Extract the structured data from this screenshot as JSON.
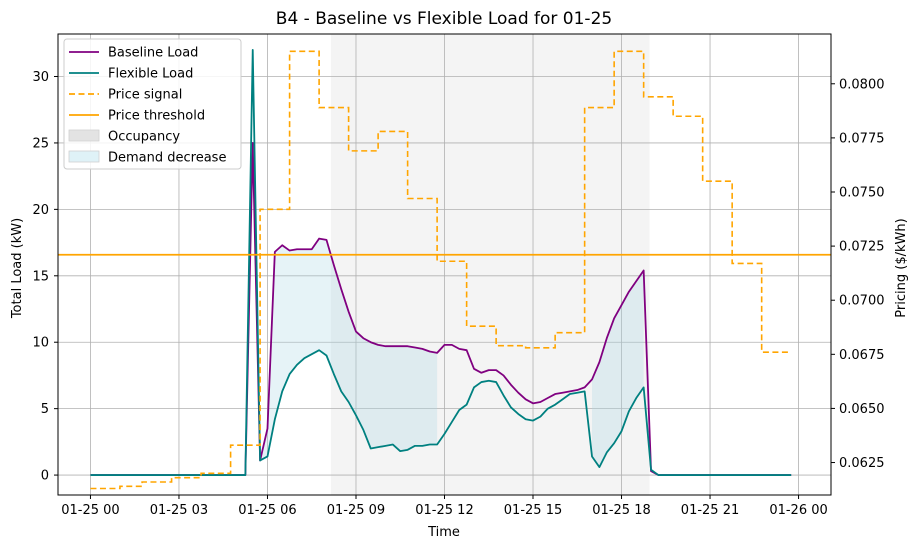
{
  "chart_data": {
    "type": "line",
    "title": "B4 - Baseline vs Flexible Load for 01-25",
    "xlabel": "Time",
    "ylabel_left": "Total Load (kW)",
    "ylabel_right": "Pricing ($/kWh)",
    "xlim_hours": [
      -1.1,
      25.1
    ],
    "ylim_left": [
      -1.5,
      33.2
    ],
    "ylim_right": [
      0.061,
      0.0823
    ],
    "grid": true,
    "legend_position": "upper-left",
    "x_ticks": [
      {
        "hour": 0,
        "label": "01-25 00"
      },
      {
        "hour": 3,
        "label": "01-25 03"
      },
      {
        "hour": 6,
        "label": "01-25 06"
      },
      {
        "hour": 9,
        "label": "01-25 09"
      },
      {
        "hour": 12,
        "label": "01-25 12"
      },
      {
        "hour": 15,
        "label": "01-25 15"
      },
      {
        "hour": 18,
        "label": "01-25 18"
      },
      {
        "hour": 21,
        "label": "01-25 21"
      },
      {
        "hour": 24,
        "label": "01-26 00"
      }
    ],
    "y_ticks_left": [
      {
        "value": 0,
        "label": "0"
      },
      {
        "value": 5,
        "label": "5"
      },
      {
        "value": 10,
        "label": "10"
      },
      {
        "value": 15,
        "label": "15"
      },
      {
        "value": 20,
        "label": "20"
      },
      {
        "value": 25,
        "label": "25"
      },
      {
        "value": 30,
        "label": "30"
      }
    ],
    "y_ticks_right": [
      {
        "value": 0.0625,
        "label": "0.0625"
      },
      {
        "value": 0.065,
        "label": "0.0650"
      },
      {
        "value": 0.0675,
        "label": "0.0675"
      },
      {
        "value": 0.07,
        "label": "0.0700"
      },
      {
        "value": 0.0725,
        "label": "0.0725"
      },
      {
        "value": 0.075,
        "label": "0.0750"
      },
      {
        "value": 0.0775,
        "label": "0.0775"
      },
      {
        "value": 0.08,
        "label": "0.0800"
      }
    ],
    "occupancy": {
      "start_hour": 8.15,
      "end_hour": 18.95
    },
    "demand_decrease_regions": [
      {
        "start_hour": 5.75,
        "end_hour": 11.75
      },
      {
        "start_hour": 16.85,
        "end_hour": 18.75
      }
    ],
    "price_threshold": 0.0721,
    "series": [
      {
        "name": "Baseline Load",
        "color": "#800080",
        "style": "solid",
        "axis": "left",
        "x": [
          0,
          0.25,
          0.5,
          0.75,
          1,
          1.25,
          1.5,
          1.75,
          2,
          2.25,
          2.5,
          2.75,
          3,
          3.25,
          3.5,
          3.75,
          4,
          4.25,
          4.5,
          4.75,
          5,
          5.25,
          5.5,
          5.75,
          6,
          6.25,
          6.5,
          6.75,
          7,
          7.25,
          7.5,
          7.75,
          8,
          8.25,
          8.5,
          8.75,
          9,
          9.25,
          9.5,
          9.75,
          10,
          10.25,
          10.5,
          10.75,
          11,
          11.25,
          11.5,
          11.75,
          12,
          12.25,
          12.5,
          12.75,
          13,
          13.25,
          13.5,
          13.75,
          14,
          14.25,
          14.5,
          14.75,
          15,
          15.25,
          15.5,
          15.75,
          16,
          16.25,
          16.5,
          16.75,
          17,
          17.25,
          17.5,
          17.75,
          18,
          18.25,
          18.5,
          18.75,
          19,
          19.25,
          19.5,
          19.75,
          20,
          20.25,
          20.5,
          20.75,
          21,
          21.25,
          21.5,
          21.75,
          22,
          22.25,
          22.5,
          22.75,
          23,
          23.25,
          23.5,
          23.75
        ],
        "y": [
          0,
          0,
          0,
          0,
          0,
          0,
          0,
          0,
          0,
          0,
          0,
          0,
          0,
          0,
          0,
          0,
          0,
          0,
          0,
          0,
          0,
          0,
          25.0,
          1.1,
          3.5,
          16.8,
          17.3,
          16.9,
          17.0,
          17.0,
          17.0,
          17.8,
          17.7,
          15.8,
          14.0,
          12.3,
          10.8,
          10.3,
          10.0,
          9.8,
          9.7,
          9.7,
          9.7,
          9.7,
          9.6,
          9.5,
          9.3,
          9.2,
          9.8,
          9.8,
          9.5,
          9.4,
          8.0,
          7.7,
          7.9,
          7.9,
          7.5,
          6.8,
          6.2,
          5.7,
          5.4,
          5.5,
          5.8,
          6.1,
          6.2,
          6.3,
          6.4,
          6.6,
          7.2,
          8.5,
          10.3,
          11.8,
          12.8,
          13.8,
          14.6,
          15.4,
          0.3,
          0,
          0,
          0,
          0,
          0,
          0,
          0,
          0,
          0,
          0,
          0,
          0,
          0,
          0,
          0,
          0,
          0,
          0,
          0
        ]
      },
      {
        "name": "Flexible Load",
        "color": "#008080",
        "style": "solid",
        "axis": "left",
        "x": [
          0,
          0.25,
          0.5,
          0.75,
          1,
          1.25,
          1.5,
          1.75,
          2,
          2.25,
          2.5,
          2.75,
          3,
          3.25,
          3.5,
          3.75,
          4,
          4.25,
          4.5,
          4.75,
          5,
          5.25,
          5.5,
          5.75,
          6,
          6.25,
          6.5,
          6.75,
          7,
          7.25,
          7.5,
          7.75,
          8,
          8.25,
          8.5,
          8.75,
          9,
          9.25,
          9.5,
          9.75,
          10,
          10.25,
          10.5,
          10.75,
          11,
          11.25,
          11.5,
          11.75,
          12,
          12.25,
          12.5,
          12.75,
          13,
          13.25,
          13.5,
          13.75,
          14,
          14.25,
          14.5,
          14.75,
          15,
          15.25,
          15.5,
          15.75,
          16,
          16.25,
          16.5,
          16.75,
          17,
          17.25,
          17.5,
          17.75,
          18,
          18.25,
          18.5,
          18.75,
          19,
          19.25,
          19.5,
          19.75,
          20,
          20.25,
          20.5,
          20.75,
          21,
          21.25,
          21.5,
          21.75,
          22,
          22.25,
          22.5,
          22.75,
          23,
          23.25,
          23.5,
          23.75
        ],
        "y": [
          0,
          0,
          0,
          0,
          0,
          0,
          0,
          0,
          0,
          0,
          0,
          0,
          0,
          0,
          0,
          0,
          0,
          0,
          0,
          0,
          0,
          0,
          32.0,
          1.1,
          1.4,
          4.2,
          6.3,
          7.6,
          8.3,
          8.8,
          9.1,
          9.4,
          9.0,
          7.6,
          6.3,
          5.5,
          4.5,
          3.4,
          2.0,
          2.1,
          2.2,
          2.3,
          1.8,
          1.9,
          2.2,
          2.2,
          2.3,
          2.3,
          3.1,
          4.0,
          4.9,
          5.3,
          6.6,
          7.0,
          7.1,
          7.0,
          6.0,
          5.1,
          4.6,
          4.2,
          4.1,
          4.4,
          5.0,
          5.3,
          5.7,
          6.1,
          6.2,
          6.3,
          1.4,
          0.6,
          1.7,
          2.4,
          3.3,
          4.8,
          5.8,
          6.6,
          0.4,
          0,
          0,
          0,
          0,
          0,
          0,
          0,
          0,
          0,
          0,
          0,
          0,
          0,
          0,
          0,
          0,
          0,
          0,
          0
        ]
      },
      {
        "name": "Price signal",
        "color": "#ffa500",
        "style": "dashed",
        "axis": "right",
        "steps": [
          {
            "from": 0,
            "to": 1,
            "value": 0.0613
          },
          {
            "from": 1,
            "to": 1.75,
            "value": 0.0614
          },
          {
            "from": 1.75,
            "to": 2.75,
            "value": 0.0616
          },
          {
            "from": 2.75,
            "to": 3.75,
            "value": 0.0618
          },
          {
            "from": 3.75,
            "to": 4.75,
            "value": 0.062
          },
          {
            "from": 4.75,
            "to": 5.75,
            "value": 0.0633
          },
          {
            "from": 5.75,
            "to": 6.75,
            "value": 0.0742
          },
          {
            "from": 6.75,
            "to": 7.75,
            "value": 0.0815
          },
          {
            "from": 7.75,
            "to": 8.75,
            "value": 0.0789
          },
          {
            "from": 8.75,
            "to": 9.75,
            "value": 0.0769
          },
          {
            "from": 9.75,
            "to": 10.75,
            "value": 0.0778
          },
          {
            "from": 10.75,
            "to": 11.75,
            "value": 0.0747
          },
          {
            "from": 11.75,
            "to": 12.75,
            "value": 0.0718
          },
          {
            "from": 12.75,
            "to": 13.75,
            "value": 0.0688
          },
          {
            "from": 13.75,
            "to": 14.75,
            "value": 0.0679
          },
          {
            "from": 14.75,
            "to": 15.75,
            "value": 0.0678
          },
          {
            "from": 15.75,
            "to": 16.75,
            "value": 0.0685
          },
          {
            "from": 16.75,
            "to": 17.75,
            "value": 0.0789
          },
          {
            "from": 17.75,
            "to": 18.75,
            "value": 0.0815
          },
          {
            "from": 18.75,
            "to": 19.75,
            "value": 0.0794
          },
          {
            "from": 19.75,
            "to": 20.75,
            "value": 0.0785
          },
          {
            "from": 20.75,
            "to": 21.75,
            "value": 0.0755
          },
          {
            "from": 21.75,
            "to": 22.75,
            "value": 0.0717
          },
          {
            "from": 22.75,
            "to": 23.75,
            "value": 0.0676
          }
        ]
      },
      {
        "name": "Price threshold",
        "color": "#ffa500",
        "style": "solid",
        "axis": "right",
        "value": 0.0721
      }
    ],
    "legend": [
      {
        "label": "Baseline Load",
        "kind": "line",
        "color": "#800080"
      },
      {
        "label": "Flexible Load",
        "kind": "line",
        "color": "#008080"
      },
      {
        "label": "Price signal",
        "kind": "dashed",
        "color": "#ffa500"
      },
      {
        "label": "Price threshold",
        "kind": "line",
        "color": "#ffa500"
      },
      {
        "label": "Occupancy",
        "kind": "patch",
        "color": "#e3e3e3"
      },
      {
        "label": "Demand decrease",
        "kind": "patch",
        "color": "#dff2f7"
      }
    ]
  }
}
